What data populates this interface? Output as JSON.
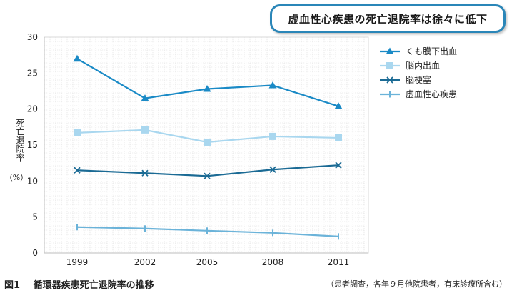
{
  "headline": "虚血性心疾患の死亡退院率は徐々に低下",
  "caption": {
    "number": "図1",
    "title": "循環器疾患死亡退院率の推移"
  },
  "note": "（患者調査，各年９月他院患者，有床診療所含む）",
  "chart_data": {
    "type": "line",
    "x": [
      "1999",
      "2002",
      "2005",
      "2008",
      "2011"
    ],
    "ylabel": "死亡退院率",
    "yunit": "（%）",
    "ylim": [
      0,
      30
    ],
    "yticks": [
      0,
      5,
      10,
      15,
      20,
      25,
      30
    ],
    "grid": true,
    "legend_position": "right",
    "series": [
      {
        "name": "くも膜下出血",
        "color": "#1a8ac6",
        "marker": "triangle",
        "values": [
          27.0,
          21.5,
          22.8,
          23.3,
          20.4
        ]
      },
      {
        "name": "脳内出血",
        "color": "#a9d7ef",
        "marker": "square",
        "values": [
          16.7,
          17.1,
          15.4,
          16.2,
          16.0
        ]
      },
      {
        "name": "脳梗塞",
        "color": "#1a6a94",
        "marker": "x",
        "values": [
          11.5,
          11.1,
          10.7,
          11.6,
          12.2
        ]
      },
      {
        "name": "虚血性心疾患",
        "color": "#6bb3d9",
        "marker": "bar",
        "values": [
          3.6,
          3.4,
          3.1,
          2.8,
          2.3
        ]
      }
    ]
  }
}
